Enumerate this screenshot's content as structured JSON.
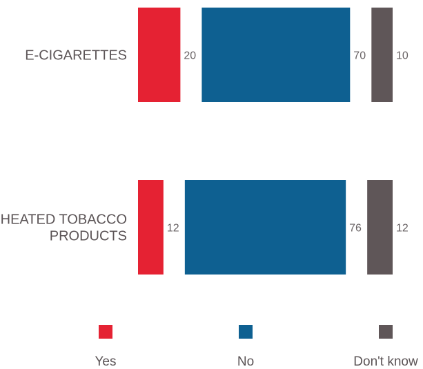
{
  "chart_data": {
    "type": "bar",
    "orientation": "horizontal",
    "stacked": true,
    "categories": [
      [
        "E-CIGARETTES"
      ],
      [
        "HEATED TOBACCO",
        "PRODUCTS"
      ]
    ],
    "series": [
      {
        "name": "Yes",
        "color": "#e52233",
        "values": [
          20,
          12
        ]
      },
      {
        "name": "No",
        "color": "#0e6091",
        "values": [
          70,
          76
        ]
      },
      {
        "name": "Don't know",
        "color": "#5f5658",
        "values": [
          10,
          12
        ]
      }
    ],
    "xlim": [
      0,
      100
    ],
    "legend": "bottom",
    "grid": false,
    "title": "",
    "xlabel": "",
    "ylabel": ""
  }
}
